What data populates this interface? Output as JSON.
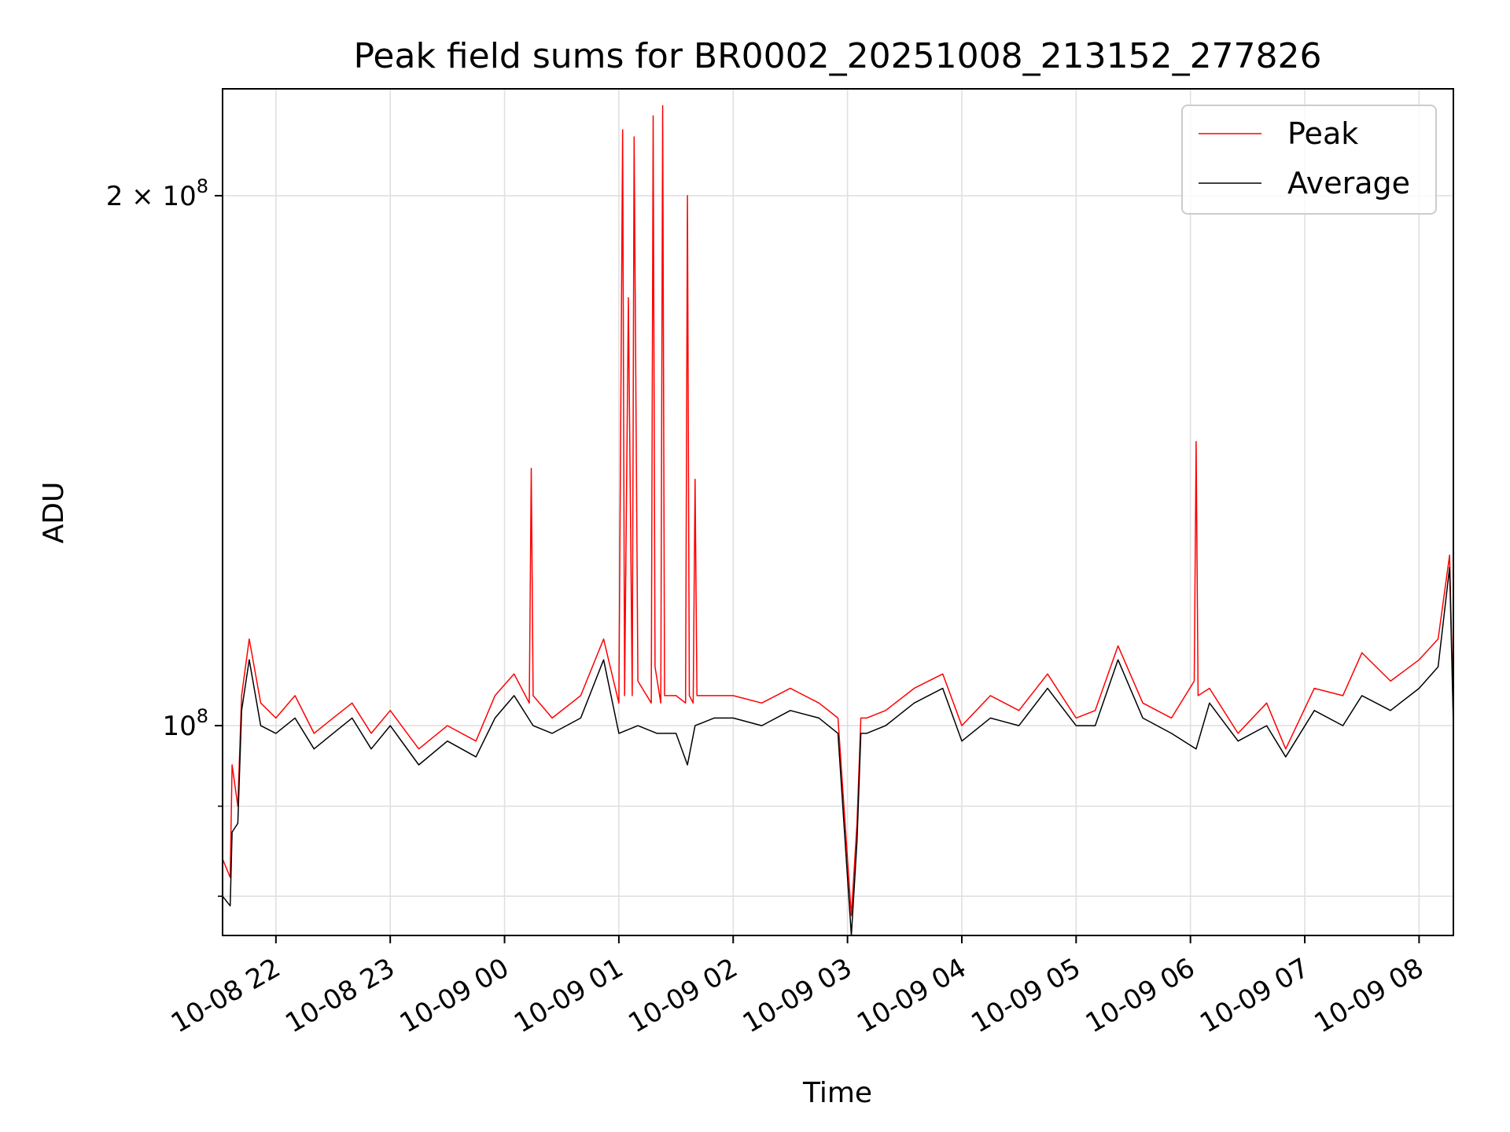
{
  "chart_data": {
    "type": "line",
    "title": "Peak field sums for BR0002_20251008_213152_277826",
    "xlabel": "Time",
    "ylabel": "ADU",
    "y_scale": "log",
    "grid": true,
    "legend_placement": "top-right",
    "xlim": [
      "2025-10-08 21:32",
      "2025-10-09 08:18"
    ],
    "ylim": [
      76000000,
      230000000
    ],
    "x_ticks": [
      "10-08 22",
      "10-08 23",
      "10-09 00",
      "10-09 01",
      "10-09 02",
      "10-09 03",
      "10-09 04",
      "10-09 05",
      "10-09 06",
      "10-09 07",
      "10-09 08"
    ],
    "x_tick_times": [
      "2025-10-08 22:00",
      "2025-10-08 23:00",
      "2025-10-09 00:00",
      "2025-10-09 01:00",
      "2025-10-09 02:00",
      "2025-10-09 03:00",
      "2025-10-09 04:00",
      "2025-10-09 05:00",
      "2025-10-09 06:00",
      "2025-10-09 07:00",
      "2025-10-09 08:00"
    ],
    "y_ticks": [
      {
        "value": 100000000,
        "label_base": "10",
        "label_exp": "8",
        "label_prefix": ""
      },
      {
        "value": 200000000,
        "label_base": "10",
        "label_exp": "8",
        "label_prefix": "2 × "
      }
    ],
    "series": [
      {
        "name": "Peak",
        "color": "#ff0000",
        "x": [
          "2025-10-08 21:32",
          "2025-10-08 21:36",
          "2025-10-08 21:37",
          "2025-10-08 21:40",
          "2025-10-08 21:42",
          "2025-10-08 21:46",
          "2025-10-08 21:52",
          "2025-10-08 22:00",
          "2025-10-08 22:10",
          "2025-10-08 22:20",
          "2025-10-08 22:30",
          "2025-10-08 22:40",
          "2025-10-08 22:50",
          "2025-10-08 23:00",
          "2025-10-08 23:15",
          "2025-10-08 23:30",
          "2025-10-08 23:45",
          "2025-10-08 23:55",
          "2025-10-09 00:05",
          "2025-10-09 00:13",
          "2025-10-09 00:14",
          "2025-10-09 00:15",
          "2025-10-09 00:25",
          "2025-10-09 00:40",
          "2025-10-09 00:52",
          "2025-10-09 01:00",
          "2025-10-09 01:02",
          "2025-10-09 01:03",
          "2025-10-09 01:05",
          "2025-10-09 01:07",
          "2025-10-09 01:08",
          "2025-10-09 01:10",
          "2025-10-09 01:17",
          "2025-10-09 01:18",
          "2025-10-09 01:19",
          "2025-10-09 01:22",
          "2025-10-09 01:23",
          "2025-10-09 01:24",
          "2025-10-09 01:30",
          "2025-10-09 01:35",
          "2025-10-09 01:36",
          "2025-10-09 01:37",
          "2025-10-09 01:39",
          "2025-10-09 01:40",
          "2025-10-09 01:41",
          "2025-10-09 01:50",
          "2025-10-09 02:00",
          "2025-10-09 02:15",
          "2025-10-09 02:30",
          "2025-10-09 02:45",
          "2025-10-09 02:55",
          "2025-10-09 03:02",
          "2025-10-09 03:05",
          "2025-10-09 03:07",
          "2025-10-09 03:10",
          "2025-10-09 03:20",
          "2025-10-09 03:35",
          "2025-10-09 03:50",
          "2025-10-09 04:00",
          "2025-10-09 04:15",
          "2025-10-09 04:30",
          "2025-10-09 04:45",
          "2025-10-09 05:00",
          "2025-10-09 05:10",
          "2025-10-09 05:22",
          "2025-10-09 05:35",
          "2025-10-09 05:50",
          "2025-10-09 06:02",
          "2025-10-09 06:03",
          "2025-10-09 06:04",
          "2025-10-09 06:10",
          "2025-10-09 06:25",
          "2025-10-09 06:40",
          "2025-10-09 06:50",
          "2025-10-09 07:05",
          "2025-10-09 07:20",
          "2025-10-09 07:30",
          "2025-10-09 07:45",
          "2025-10-09 08:00",
          "2025-10-09 08:10",
          "2025-10-09 08:16",
          "2025-10-09 08:18"
        ],
        "values": [
          84000000,
          82000000,
          95000000,
          90000000,
          104000000,
          112000000,
          103000000,
          101000000,
          104000000,
          99000000,
          101000000,
          103000000,
          99000000,
          102000000,
          97000000,
          100000000,
          98000000,
          104000000,
          107000000,
          103000000,
          140000000,
          104000000,
          101000000,
          104000000,
          112000000,
          103000000,
          218000000,
          104000000,
          175000000,
          104000000,
          216000000,
          106000000,
          103000000,
          222000000,
          108000000,
          103000000,
          225000000,
          104000000,
          104000000,
          103000000,
          200000000,
          104000000,
          103000000,
          138000000,
          104000000,
          104000000,
          104000000,
          103000000,
          105000000,
          103000000,
          101000000,
          78000000,
          88000000,
          101000000,
          101000000,
          102000000,
          105000000,
          107000000,
          100000000,
          104000000,
          102000000,
          107000000,
          101000000,
          102000000,
          111000000,
          103000000,
          101000000,
          106000000,
          145000000,
          104000000,
          105000000,
          99000000,
          103000000,
          97000000,
          105000000,
          104000000,
          110000000,
          106000000,
          109000000,
          112000000,
          125000000,
          101000000
        ]
      },
      {
        "name": "Average",
        "color": "#000000",
        "x": [
          "2025-10-08 21:32",
          "2025-10-08 21:36",
          "2025-10-08 21:37",
          "2025-10-08 21:40",
          "2025-10-08 21:42",
          "2025-10-08 21:46",
          "2025-10-08 21:52",
          "2025-10-08 22:00",
          "2025-10-08 22:10",
          "2025-10-08 22:20",
          "2025-10-08 22:30",
          "2025-10-08 22:40",
          "2025-10-08 22:50",
          "2025-10-08 23:00",
          "2025-10-08 23:15",
          "2025-10-08 23:30",
          "2025-10-08 23:45",
          "2025-10-08 23:55",
          "2025-10-09 00:05",
          "2025-10-09 00:15",
          "2025-10-09 00:25",
          "2025-10-09 00:40",
          "2025-10-09 00:52",
          "2025-10-09 01:00",
          "2025-10-09 01:10",
          "2025-10-09 01:20",
          "2025-10-09 01:30",
          "2025-10-09 01:36",
          "2025-10-09 01:40",
          "2025-10-09 01:50",
          "2025-10-09 02:00",
          "2025-10-09 02:15",
          "2025-10-09 02:30",
          "2025-10-09 02:45",
          "2025-10-09 02:55",
          "2025-10-09 03:02",
          "2025-10-09 03:05",
          "2025-10-09 03:07",
          "2025-10-09 03:10",
          "2025-10-09 03:20",
          "2025-10-09 03:35",
          "2025-10-09 03:50",
          "2025-10-09 04:00",
          "2025-10-09 04:15",
          "2025-10-09 04:30",
          "2025-10-09 04:45",
          "2025-10-09 05:00",
          "2025-10-09 05:10",
          "2025-10-09 05:22",
          "2025-10-09 05:35",
          "2025-10-09 05:50",
          "2025-10-09 06:03",
          "2025-10-09 06:10",
          "2025-10-09 06:25",
          "2025-10-09 06:40",
          "2025-10-09 06:50",
          "2025-10-09 07:05",
          "2025-10-09 07:20",
          "2025-10-09 07:30",
          "2025-10-09 07:45",
          "2025-10-09 08:00",
          "2025-10-09 08:10",
          "2025-10-09 08:16",
          "2025-10-09 08:18"
        ],
        "values": [
          80000000,
          79000000,
          87000000,
          88000000,
          102000000,
          109000000,
          100000000,
          99000000,
          101000000,
          97000000,
          99000000,
          101000000,
          97000000,
          100000000,
          95000000,
          98000000,
          96000000,
          101000000,
          104000000,
          100000000,
          99000000,
          101000000,
          109000000,
          99000000,
          100000000,
          99000000,
          99000000,
          95000000,
          100000000,
          101000000,
          101000000,
          100000000,
          102000000,
          101000000,
          99000000,
          76000000,
          86000000,
          99000000,
          99000000,
          100000000,
          103000000,
          105000000,
          98000000,
          101000000,
          100000000,
          105000000,
          100000000,
          100000000,
          109000000,
          101000000,
          99000000,
          97000000,
          103000000,
          98000000,
          100000000,
          96000000,
          102000000,
          100000000,
          104000000,
          102000000,
          105000000,
          108000000,
          123000000,
          100000000
        ]
      }
    ]
  }
}
